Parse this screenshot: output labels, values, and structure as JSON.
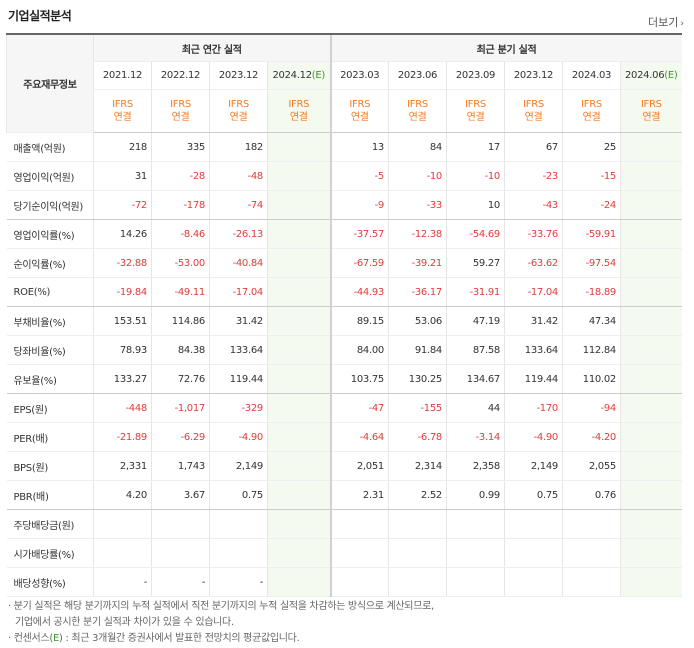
{
  "title": "기업실적분석",
  "more": "더보기",
  "header": {
    "row_label": "주요재무정보",
    "annual_group": "최근 연간 실적",
    "quarter_group": "최근 분기 실적",
    "annual_periods": [
      "2021.12",
      "2022.12",
      "2023.12",
      "2024.12(E)"
    ],
    "quarter_periods": [
      "2023.03",
      "2023.06",
      "2023.09",
      "2023.12",
      "2024.03",
      "2024.06(E)"
    ],
    "ifrs_top": "IFRS",
    "ifrs_bottom": "연결"
  },
  "rows": [
    {
      "label": "매출액(억원)",
      "a": [
        "218",
        "335",
        "182",
        ""
      ],
      "q": [
        "13",
        "84",
        "17",
        "67",
        "25",
        ""
      ]
    },
    {
      "label": "영업이익(억원)",
      "a": [
        "31",
        "-28",
        "-48",
        ""
      ],
      "q": [
        "-5",
        "-10",
        "-10",
        "-23",
        "-15",
        ""
      ]
    },
    {
      "label": "당기순이익(억원)",
      "a": [
        "-72",
        "-178",
        "-74",
        ""
      ],
      "q": [
        "-9",
        "-33",
        "10",
        "-43",
        "-24",
        ""
      ]
    },
    {
      "label": "영업이익률(%)",
      "a": [
        "14.26",
        "-8.46",
        "-26.13",
        ""
      ],
      "q": [
        "-37.57",
        "-12.38",
        "-54.69",
        "-33.76",
        "-59.91",
        ""
      ]
    },
    {
      "label": "순이익률(%)",
      "a": [
        "-32.88",
        "-53.00",
        "-40.84",
        ""
      ],
      "q": [
        "-67.59",
        "-39.21",
        "59.27",
        "-63.62",
        "-97.54",
        ""
      ]
    },
    {
      "label": "ROE(%)",
      "a": [
        "-19.84",
        "-49.11",
        "-17.04",
        ""
      ],
      "q": [
        "-44.93",
        "-36.17",
        "-31.91",
        "-17.04",
        "-18.89",
        ""
      ]
    },
    {
      "label": "부채비율(%)",
      "a": [
        "153.51",
        "114.86",
        "31.42",
        ""
      ],
      "q": [
        "89.15",
        "53.06",
        "47.19",
        "31.42",
        "47.34",
        ""
      ]
    },
    {
      "label": "당좌비율(%)",
      "a": [
        "78.93",
        "84.38",
        "133.64",
        ""
      ],
      "q": [
        "84.00",
        "91.84",
        "87.58",
        "133.64",
        "112.84",
        ""
      ]
    },
    {
      "label": "유보율(%)",
      "a": [
        "133.27",
        "72.76",
        "119.44",
        ""
      ],
      "q": [
        "103.75",
        "130.25",
        "134.67",
        "119.44",
        "110.02",
        ""
      ]
    },
    {
      "label": "EPS(원)",
      "a": [
        "-448",
        "-1,017",
        "-329",
        ""
      ],
      "q": [
        "-47",
        "-155",
        "44",
        "-170",
        "-94",
        ""
      ]
    },
    {
      "label": "PER(배)",
      "a": [
        "-21.89",
        "-6.29",
        "-4.90",
        ""
      ],
      "q": [
        "-4.64",
        "-6.78",
        "-3.14",
        "-4.90",
        "-4.20",
        ""
      ]
    },
    {
      "label": "BPS(원)",
      "a": [
        "2,331",
        "1,743",
        "2,149",
        ""
      ],
      "q": [
        "2,051",
        "2,314",
        "2,358",
        "2,149",
        "2,055",
        ""
      ]
    },
    {
      "label": "PBR(배)",
      "a": [
        "4.20",
        "3.67",
        "0.75",
        ""
      ],
      "q": [
        "2.31",
        "2.52",
        "0.99",
        "0.75",
        "0.76",
        ""
      ]
    },
    {
      "label": "주당배당금(원)",
      "a": [
        "",
        "",
        "",
        ""
      ],
      "q": [
        "",
        "",
        "",
        "",
        "",
        ""
      ]
    },
    {
      "label": "시가배당률(%)",
      "a": [
        "",
        "",
        "",
        ""
      ],
      "q": [
        "",
        "",
        "",
        "",
        "",
        ""
      ]
    },
    {
      "label": "배당성향(%)",
      "a": [
        "-",
        "-",
        "-",
        ""
      ],
      "q": [
        "",
        "",
        "",
        "",
        "",
        ""
      ]
    }
  ],
  "notes": {
    "line1": "· 분기 실적은 해당 분기까지의 누적 실적에서 직전 분기까지의 누적 실적을 차감하는 방식으로 계산되므로,",
    "line2": "기업에서 공시한 분기 실적과 차이가 있을 수 있습니다.",
    "line3_prefix": "· 컨센서스(",
    "line3_e": "E",
    "line3_suffix": ") : 최근 3개월간 증권사에서 발표한 전망치의 평균값입니다."
  }
}
